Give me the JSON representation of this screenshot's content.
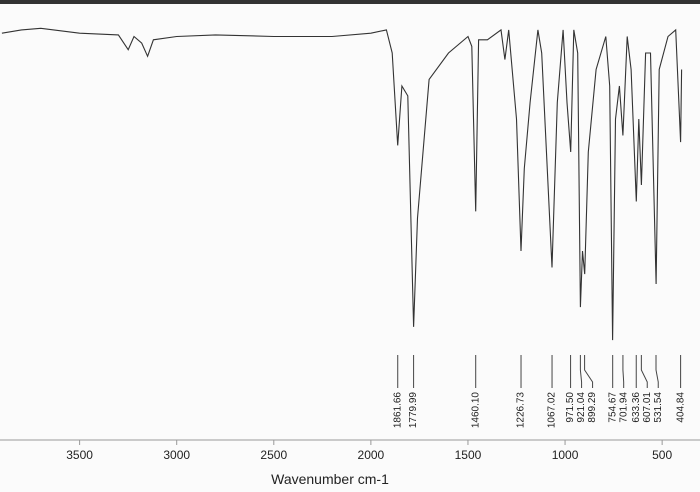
{
  "chart_data": {
    "type": "line",
    "x_label": "Wavenumber cm-1",
    "xlim": [
      3910,
      305
    ],
    "xticks": [
      3500,
      3000,
      2500,
      2000,
      1500,
      1000,
      500
    ],
    "ylim": [
      0,
      100
    ],
    "color": "#333333",
    "x": [
      3900,
      3800,
      3700,
      3500,
      3300,
      3250,
      3220,
      3180,
      3150,
      3120,
      3000,
      2800,
      2500,
      2200,
      2000,
      1920,
      1890,
      1862,
      1840,
      1810,
      1780,
      1760,
      1700,
      1600,
      1500,
      1480,
      1460,
      1445,
      1400,
      1330,
      1310,
      1290,
      1250,
      1227,
      1210,
      1180,
      1140,
      1120,
      1067,
      1040,
      1010,
      990,
      971,
      955,
      935,
      921,
      910,
      899,
      880,
      840,
      790,
      770,
      755,
      740,
      720,
      702,
      680,
      660,
      633,
      620,
      607,
      585,
      560,
      531,
      515,
      470,
      430,
      405,
      400
    ],
    "values": [
      96,
      97,
      97.5,
      96,
      95.5,
      91,
      95,
      93,
      89,
      94,
      95,
      95.5,
      95,
      95,
      96,
      97,
      90,
      62,
      80,
      77,
      7,
      40,
      82,
      90,
      95,
      92,
      42,
      94,
      94,
      97,
      88,
      97,
      70,
      30,
      55,
      75,
      97,
      90,
      25,
      75,
      97,
      75,
      60,
      97,
      90,
      13,
      30,
      23,
      60,
      85,
      95,
      80,
      3,
      70,
      80,
      65,
      95,
      85,
      45,
      70,
      50,
      90,
      90,
      20,
      85,
      95,
      97,
      63,
      85
    ],
    "peaks": [
      1861.66,
      1779.99,
      {
        "value": 1460.1,
        "label": "1460.10"
      },
      1226.73,
      1067.02,
      {
        "value": 971.5,
        "label": "971.50"
      },
      921.04,
      899.29,
      754.67,
      701.94,
      633.36,
      607.01,
      531.54,
      404.84
    ]
  }
}
